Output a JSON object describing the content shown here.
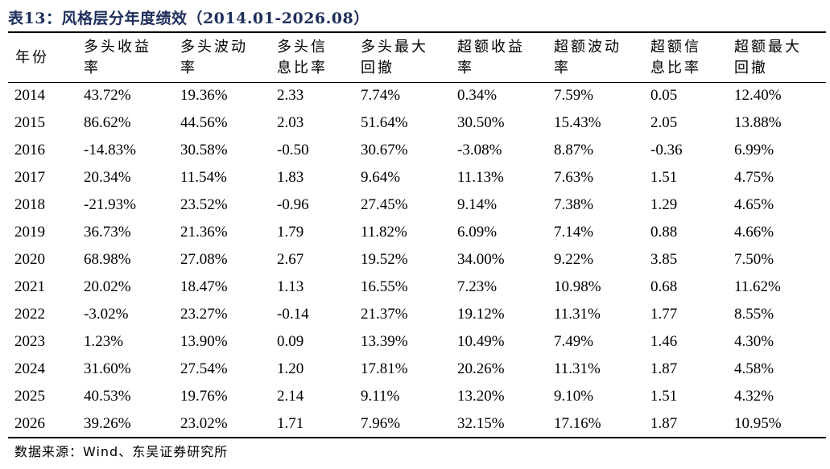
{
  "title": "表13：风格层分年度绩效（2014.01-2026.08）",
  "table": {
    "headers": [
      "年份",
      "多头收益\n率",
      "多头波动\n率",
      "多头信\n息比率",
      "多头最大\n回撤",
      "超额收益\n率",
      "超额波动\n率",
      "超额信\n息比率",
      "超额最大\n回撤"
    ],
    "rows": [
      [
        "2014",
        "43.72%",
        "19.36%",
        "2.33",
        "7.74%",
        "0.34%",
        "7.59%",
        "0.05",
        "12.40%"
      ],
      [
        "2015",
        "86.62%",
        "44.56%",
        "2.03",
        "51.64%",
        "30.50%",
        "15.43%",
        "2.05",
        "13.88%"
      ],
      [
        "2016",
        "-14.83%",
        "30.58%",
        "-0.50",
        "30.67%",
        "-3.08%",
        "8.87%",
        "-0.36",
        "6.99%"
      ],
      [
        "2017",
        "20.34%",
        "11.54%",
        "1.83",
        "9.64%",
        "11.13%",
        "7.63%",
        "1.51",
        "4.75%"
      ],
      [
        "2018",
        "-21.93%",
        "23.52%",
        "-0.96",
        "27.45%",
        "9.14%",
        "7.38%",
        "1.29",
        "4.65%"
      ],
      [
        "2019",
        "36.73%",
        "21.36%",
        "1.79",
        "11.82%",
        "6.09%",
        "7.14%",
        "0.88",
        "4.66%"
      ],
      [
        "2020",
        "68.98%",
        "27.08%",
        "2.67",
        "19.52%",
        "34.00%",
        "9.22%",
        "3.85",
        "7.50%"
      ],
      [
        "2021",
        "20.02%",
        "18.47%",
        "1.13",
        "16.55%",
        "7.23%",
        "10.98%",
        "0.68",
        "11.62%"
      ],
      [
        "2022",
        "-3.02%",
        "23.27%",
        "-0.14",
        "21.37%",
        "19.12%",
        "11.31%",
        "1.77",
        "8.55%"
      ],
      [
        "2023",
        "1.23%",
        "13.90%",
        "0.09",
        "13.39%",
        "10.49%",
        "7.49%",
        "1.46",
        "4.30%"
      ],
      [
        "2024",
        "31.60%",
        "27.54%",
        "1.20",
        "17.81%",
        "20.26%",
        "11.31%",
        "1.87",
        "4.58%"
      ],
      [
        "2025",
        "40.53%",
        "19.76%",
        "2.14",
        "9.11%",
        "13.20%",
        "9.10%",
        "1.51",
        "4.32%"
      ],
      [
        "2026",
        "39.26%",
        "23.02%",
        "1.71",
        "7.96%",
        "32.15%",
        "17.16%",
        "1.87",
        "10.95%"
      ]
    ]
  },
  "source": "数据来源：Wind、东吴证券研究所",
  "colors": {
    "title": "#1f2f5c",
    "rule": "#000000",
    "text": "#000000",
    "background": "#ffffff"
  }
}
